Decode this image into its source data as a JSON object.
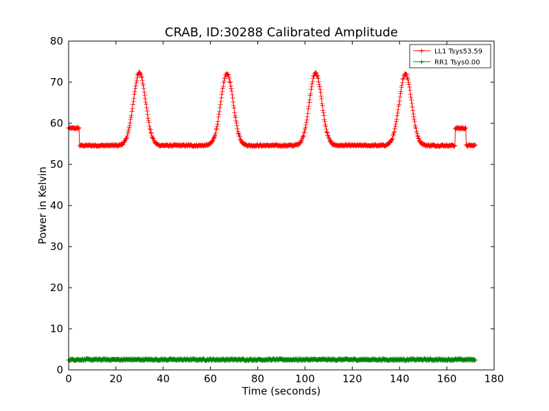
{
  "chart_data": {
    "type": "line",
    "title": "CRAB, ID:30288 Calibrated Amplitude",
    "xlabel": "Time (seconds)",
    "ylabel": "Power in Kelvin",
    "xlim": [
      0,
      180
    ],
    "ylim": [
      0,
      80
    ],
    "xticks": [
      0,
      20,
      40,
      60,
      80,
      100,
      120,
      140,
      160,
      180
    ],
    "yticks": [
      0,
      10,
      20,
      30,
      40,
      50,
      60,
      70,
      80
    ],
    "grid": false,
    "legend_position": "top-right",
    "marker": "+",
    "series": [
      {
        "name": "LL1 Tsys53.59",
        "color": "#ff0000",
        "baseline": 54.6,
        "start_level": 58.8,
        "start_level_range": [
          0,
          4.5
        ],
        "end_level": 58.8,
        "end_level_range": [
          163.5,
          168
        ],
        "end_tail_level": 54.6,
        "end_tail_range": [
          168,
          172
        ],
        "peaks": [
          {
            "x": 30,
            "y": 72.3,
            "width": 2.6
          },
          {
            "x": 67,
            "y": 72.1,
            "width": 2.6
          },
          {
            "x": 104.5,
            "y": 72.3,
            "width": 2.6
          },
          {
            "x": 142.5,
            "y": 72.1,
            "width": 2.6
          }
        ],
        "x_range": [
          0,
          172
        ]
      },
      {
        "name": "RR1 Tsys0.00",
        "color": "#008000",
        "baseline": 2.5,
        "peaks": [],
        "x_range": [
          0,
          172
        ]
      }
    ]
  }
}
